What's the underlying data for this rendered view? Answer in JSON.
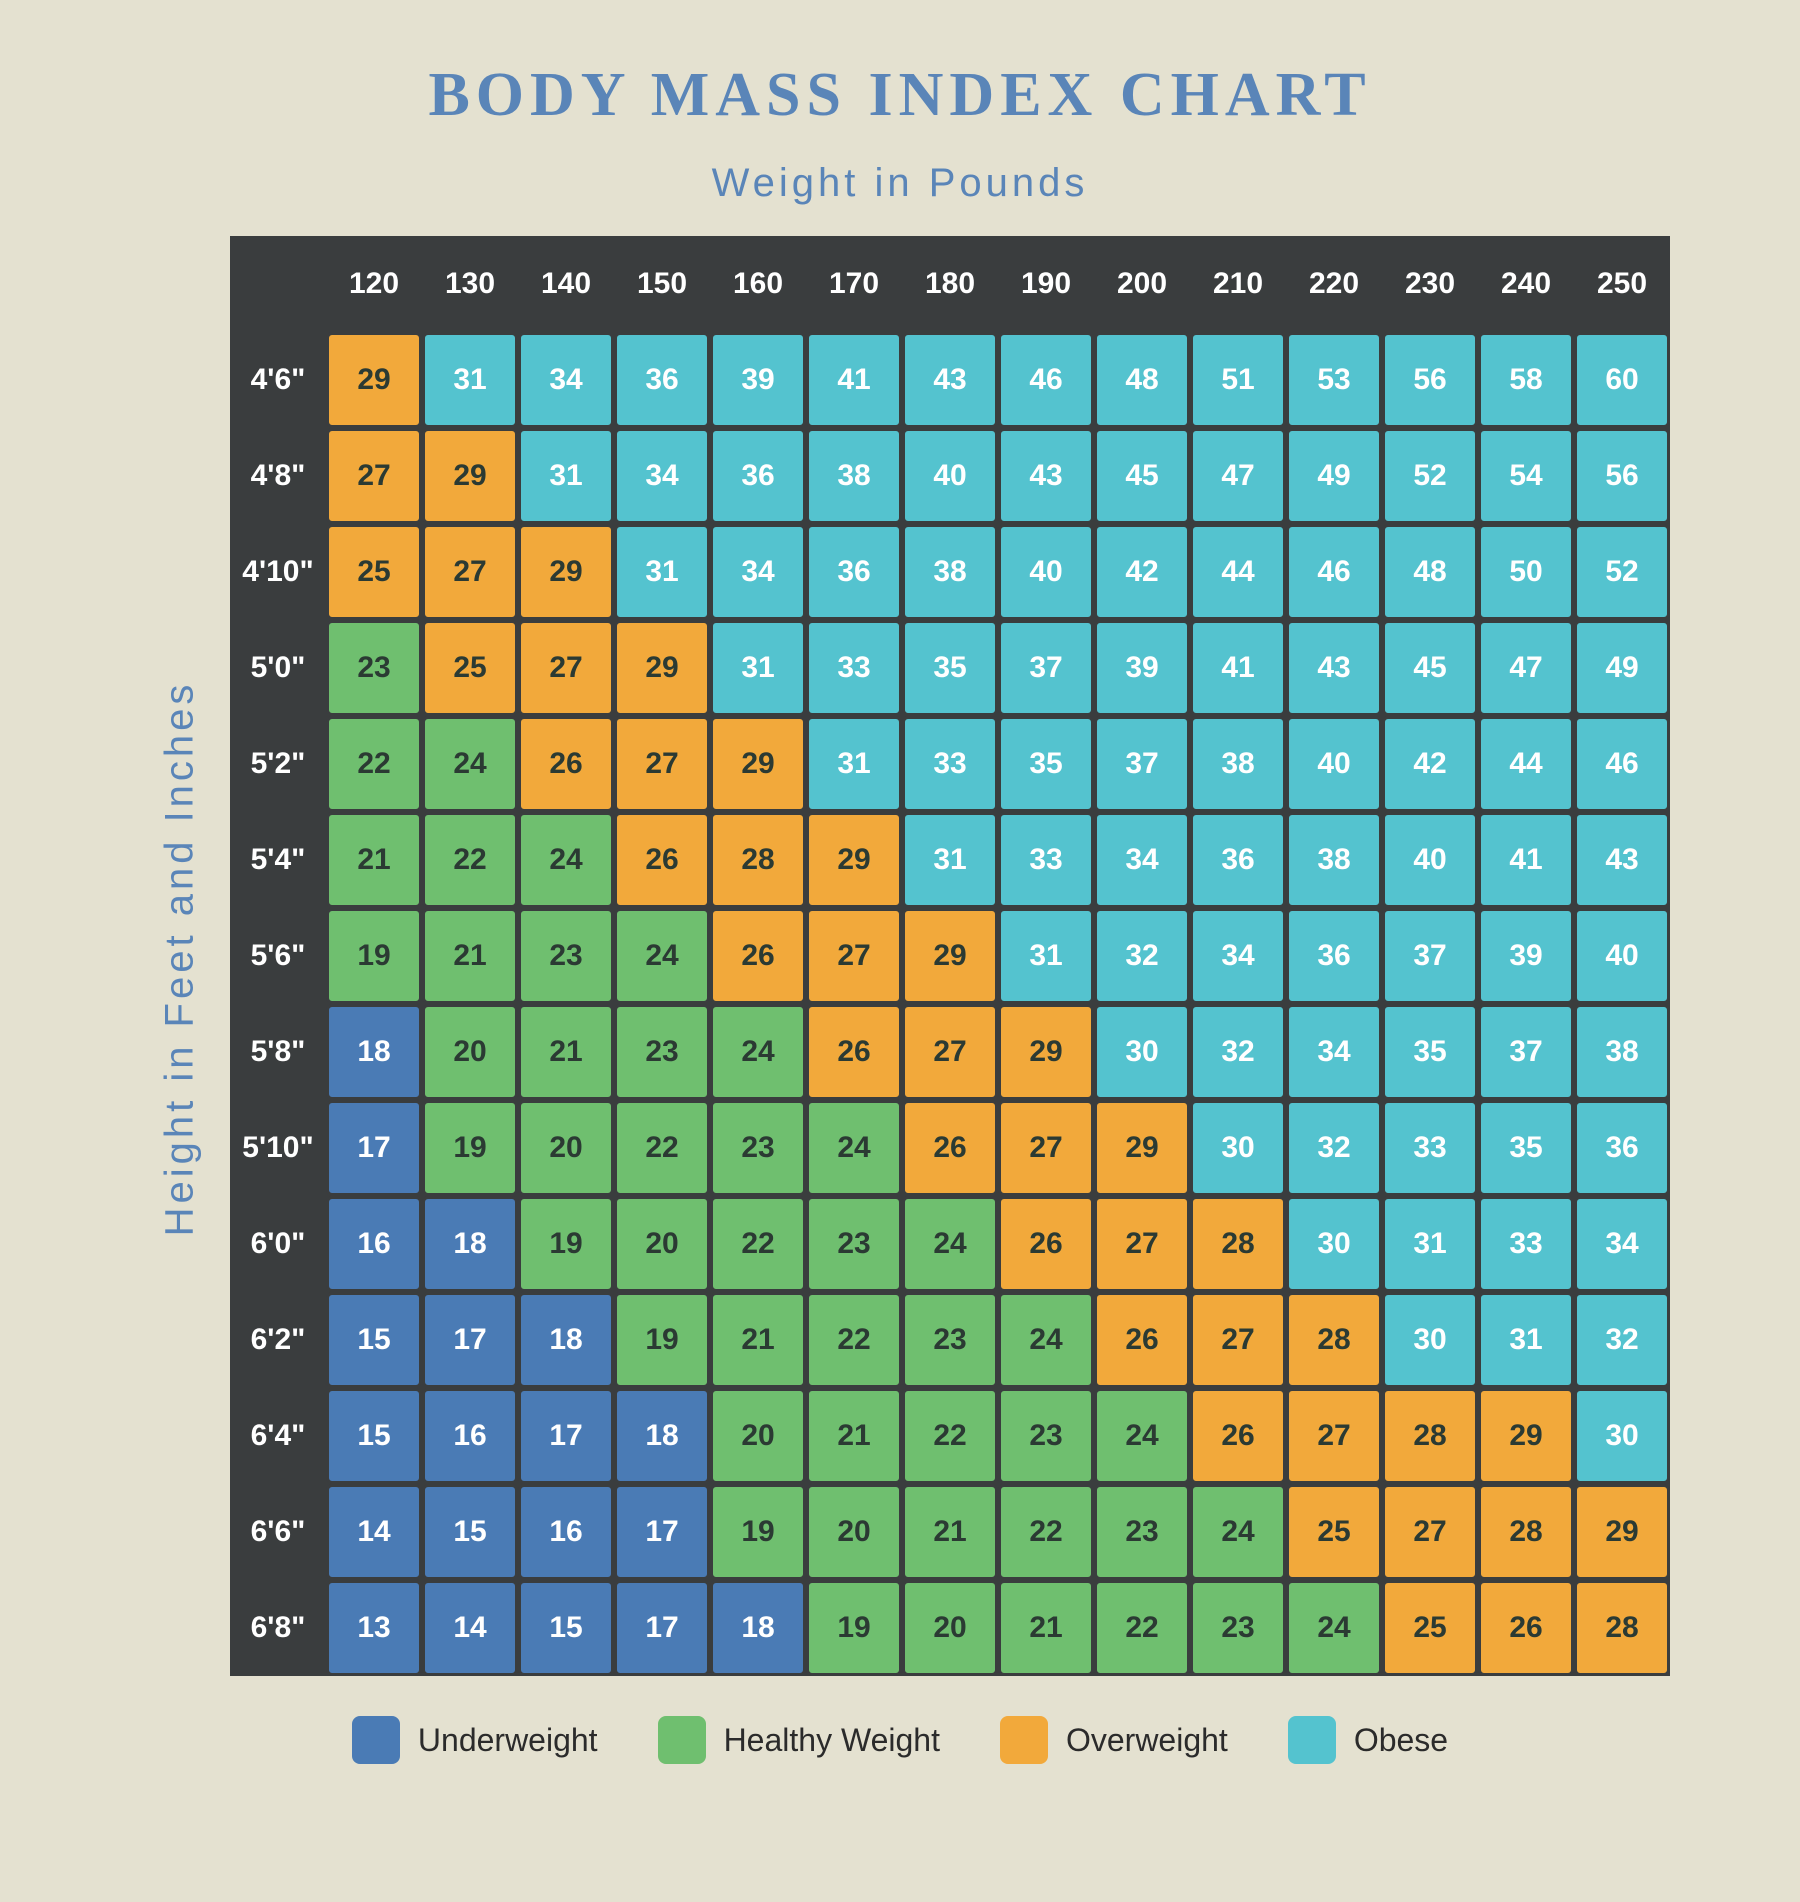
{
  "title": "BODY MASS INDEX CHART",
  "title_color": "#5a85b8",
  "title_fontsize": 62,
  "x_axis_label": "Weight  in  Pounds",
  "y_axis_label": "Height  in  Feet  and  Inches",
  "axis_label_color": "#5a85b8",
  "axis_label_fontsize": 40,
  "background_color": "#e4e1d0",
  "table_border_color": "#3a3d3e",
  "header_bg": "#3a3d3e",
  "header_text_color": "#ffffff",
  "cell_fontsize": 30,
  "header_fontsize": 30,
  "cell_size": 96,
  "categories": {
    "underweight": {
      "label": "Underweight",
      "color": "#4a7bb5",
      "text": "light"
    },
    "healthy": {
      "label": "Healthy Weight",
      "color": "#6fbf6f",
      "text": "dark"
    },
    "overweight": {
      "label": "Overweight",
      "color": "#f2a93b",
      "text": "dark"
    },
    "obese": {
      "label": "Obese",
      "color": "#54c3cf",
      "text": "light"
    }
  },
  "legend_order": [
    "underweight",
    "healthy",
    "overweight",
    "obese"
  ],
  "legend_swatch_size": 48,
  "legend_fontsize": 32,
  "weights": [
    120,
    130,
    140,
    150,
    160,
    170,
    180,
    190,
    200,
    210,
    220,
    230,
    240,
    250
  ],
  "heights": [
    "4'6\"",
    "4'8\"",
    "4'10\"",
    "5'0\"",
    "5'2\"",
    "5'4\"",
    "5'6\"",
    "5'8\"",
    "5'10\"",
    "6'0\"",
    "6'2\"",
    "6'4\"",
    "6'6\"",
    "6'8\""
  ],
  "cells": [
    [
      [
        29,
        "overweight"
      ],
      [
        31,
        "obese"
      ],
      [
        34,
        "obese"
      ],
      [
        36,
        "obese"
      ],
      [
        39,
        "obese"
      ],
      [
        41,
        "obese"
      ],
      [
        43,
        "obese"
      ],
      [
        46,
        "obese"
      ],
      [
        48,
        "obese"
      ],
      [
        51,
        "obese"
      ],
      [
        53,
        "obese"
      ],
      [
        56,
        "obese"
      ],
      [
        58,
        "obese"
      ],
      [
        60,
        "obese"
      ]
    ],
    [
      [
        27,
        "overweight"
      ],
      [
        29,
        "overweight"
      ],
      [
        31,
        "obese"
      ],
      [
        34,
        "obese"
      ],
      [
        36,
        "obese"
      ],
      [
        38,
        "obese"
      ],
      [
        40,
        "obese"
      ],
      [
        43,
        "obese"
      ],
      [
        45,
        "obese"
      ],
      [
        47,
        "obese"
      ],
      [
        49,
        "obese"
      ],
      [
        52,
        "obese"
      ],
      [
        54,
        "obese"
      ],
      [
        56,
        "obese"
      ]
    ],
    [
      [
        25,
        "overweight"
      ],
      [
        27,
        "overweight"
      ],
      [
        29,
        "overweight"
      ],
      [
        31,
        "obese"
      ],
      [
        34,
        "obese"
      ],
      [
        36,
        "obese"
      ],
      [
        38,
        "obese"
      ],
      [
        40,
        "obese"
      ],
      [
        42,
        "obese"
      ],
      [
        44,
        "obese"
      ],
      [
        46,
        "obese"
      ],
      [
        48,
        "obese"
      ],
      [
        50,
        "obese"
      ],
      [
        52,
        "obese"
      ]
    ],
    [
      [
        23,
        "healthy"
      ],
      [
        25,
        "overweight"
      ],
      [
        27,
        "overweight"
      ],
      [
        29,
        "overweight"
      ],
      [
        31,
        "obese"
      ],
      [
        33,
        "obese"
      ],
      [
        35,
        "obese"
      ],
      [
        37,
        "obese"
      ],
      [
        39,
        "obese"
      ],
      [
        41,
        "obese"
      ],
      [
        43,
        "obese"
      ],
      [
        45,
        "obese"
      ],
      [
        47,
        "obese"
      ],
      [
        49,
        "obese"
      ]
    ],
    [
      [
        22,
        "healthy"
      ],
      [
        24,
        "healthy"
      ],
      [
        26,
        "overweight"
      ],
      [
        27,
        "overweight"
      ],
      [
        29,
        "overweight"
      ],
      [
        31,
        "obese"
      ],
      [
        33,
        "obese"
      ],
      [
        35,
        "obese"
      ],
      [
        37,
        "obese"
      ],
      [
        38,
        "obese"
      ],
      [
        40,
        "obese"
      ],
      [
        42,
        "obese"
      ],
      [
        44,
        "obese"
      ],
      [
        46,
        "obese"
      ]
    ],
    [
      [
        21,
        "healthy"
      ],
      [
        22,
        "healthy"
      ],
      [
        24,
        "healthy"
      ],
      [
        26,
        "overweight"
      ],
      [
        28,
        "overweight"
      ],
      [
        29,
        "overweight"
      ],
      [
        31,
        "obese"
      ],
      [
        33,
        "obese"
      ],
      [
        34,
        "obese"
      ],
      [
        36,
        "obese"
      ],
      [
        38,
        "obese"
      ],
      [
        40,
        "obese"
      ],
      [
        41,
        "obese"
      ],
      [
        43,
        "obese"
      ]
    ],
    [
      [
        19,
        "healthy"
      ],
      [
        21,
        "healthy"
      ],
      [
        23,
        "healthy"
      ],
      [
        24,
        "healthy"
      ],
      [
        26,
        "overweight"
      ],
      [
        27,
        "overweight"
      ],
      [
        29,
        "overweight"
      ],
      [
        31,
        "obese"
      ],
      [
        32,
        "obese"
      ],
      [
        34,
        "obese"
      ],
      [
        36,
        "obese"
      ],
      [
        37,
        "obese"
      ],
      [
        39,
        "obese"
      ],
      [
        40,
        "obese"
      ]
    ],
    [
      [
        18,
        "underweight"
      ],
      [
        20,
        "healthy"
      ],
      [
        21,
        "healthy"
      ],
      [
        23,
        "healthy"
      ],
      [
        24,
        "healthy"
      ],
      [
        26,
        "overweight"
      ],
      [
        27,
        "overweight"
      ],
      [
        29,
        "overweight"
      ],
      [
        30,
        "obese"
      ],
      [
        32,
        "obese"
      ],
      [
        34,
        "obese"
      ],
      [
        35,
        "obese"
      ],
      [
        37,
        "obese"
      ],
      [
        38,
        "obese"
      ]
    ],
    [
      [
        17,
        "underweight"
      ],
      [
        19,
        "healthy"
      ],
      [
        20,
        "healthy"
      ],
      [
        22,
        "healthy"
      ],
      [
        23,
        "healthy"
      ],
      [
        24,
        "healthy"
      ],
      [
        26,
        "overweight"
      ],
      [
        27,
        "overweight"
      ],
      [
        29,
        "overweight"
      ],
      [
        30,
        "obese"
      ],
      [
        32,
        "obese"
      ],
      [
        33,
        "obese"
      ],
      [
        35,
        "obese"
      ],
      [
        36,
        "obese"
      ]
    ],
    [
      [
        16,
        "underweight"
      ],
      [
        18,
        "underweight"
      ],
      [
        19,
        "healthy"
      ],
      [
        20,
        "healthy"
      ],
      [
        22,
        "healthy"
      ],
      [
        23,
        "healthy"
      ],
      [
        24,
        "healthy"
      ],
      [
        26,
        "overweight"
      ],
      [
        27,
        "overweight"
      ],
      [
        28,
        "overweight"
      ],
      [
        30,
        "obese"
      ],
      [
        31,
        "obese"
      ],
      [
        33,
        "obese"
      ],
      [
        34,
        "obese"
      ]
    ],
    [
      [
        15,
        "underweight"
      ],
      [
        17,
        "underweight"
      ],
      [
        18,
        "underweight"
      ],
      [
        19,
        "healthy"
      ],
      [
        21,
        "healthy"
      ],
      [
        22,
        "healthy"
      ],
      [
        23,
        "healthy"
      ],
      [
        24,
        "healthy"
      ],
      [
        26,
        "overweight"
      ],
      [
        27,
        "overweight"
      ],
      [
        28,
        "overweight"
      ],
      [
        30,
        "obese"
      ],
      [
        31,
        "obese"
      ],
      [
        32,
        "obese"
      ]
    ],
    [
      [
        15,
        "underweight"
      ],
      [
        16,
        "underweight"
      ],
      [
        17,
        "underweight"
      ],
      [
        18,
        "underweight"
      ],
      [
        20,
        "healthy"
      ],
      [
        21,
        "healthy"
      ],
      [
        22,
        "healthy"
      ],
      [
        23,
        "healthy"
      ],
      [
        24,
        "healthy"
      ],
      [
        26,
        "overweight"
      ],
      [
        27,
        "overweight"
      ],
      [
        28,
        "overweight"
      ],
      [
        29,
        "overweight"
      ],
      [
        30,
        "obese"
      ]
    ],
    [
      [
        14,
        "underweight"
      ],
      [
        15,
        "underweight"
      ],
      [
        16,
        "underweight"
      ],
      [
        17,
        "underweight"
      ],
      [
        19,
        "healthy"
      ],
      [
        20,
        "healthy"
      ],
      [
        21,
        "healthy"
      ],
      [
        22,
        "healthy"
      ],
      [
        23,
        "healthy"
      ],
      [
        24,
        "healthy"
      ],
      [
        25,
        "overweight"
      ],
      [
        27,
        "overweight"
      ],
      [
        28,
        "overweight"
      ],
      [
        29,
        "overweight"
      ]
    ],
    [
      [
        13,
        "underweight"
      ],
      [
        14,
        "underweight"
      ],
      [
        15,
        "underweight"
      ],
      [
        17,
        "underweight"
      ],
      [
        18,
        "underweight"
      ],
      [
        19,
        "healthy"
      ],
      [
        20,
        "healthy"
      ],
      [
        21,
        "healthy"
      ],
      [
        22,
        "healthy"
      ],
      [
        23,
        "healthy"
      ],
      [
        24,
        "healthy"
      ],
      [
        25,
        "overweight"
      ],
      [
        26,
        "overweight"
      ],
      [
        28,
        "overweight"
      ]
    ]
  ]
}
